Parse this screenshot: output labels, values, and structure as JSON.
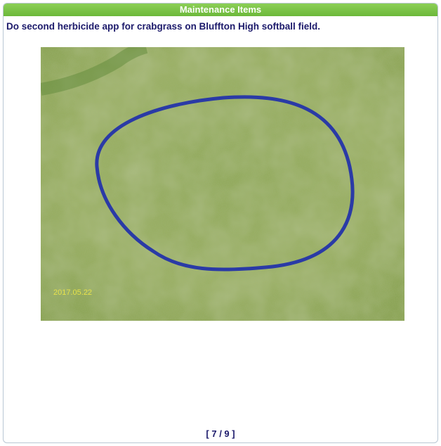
{
  "header": {
    "title": "Maintenance Items"
  },
  "item": {
    "description": "Do second herbicide app for crabgrass on Bluffton High softball field.",
    "photo_timestamp": "2017.05.22"
  },
  "pager": {
    "label": "[ 7 / 9 ]"
  }
}
